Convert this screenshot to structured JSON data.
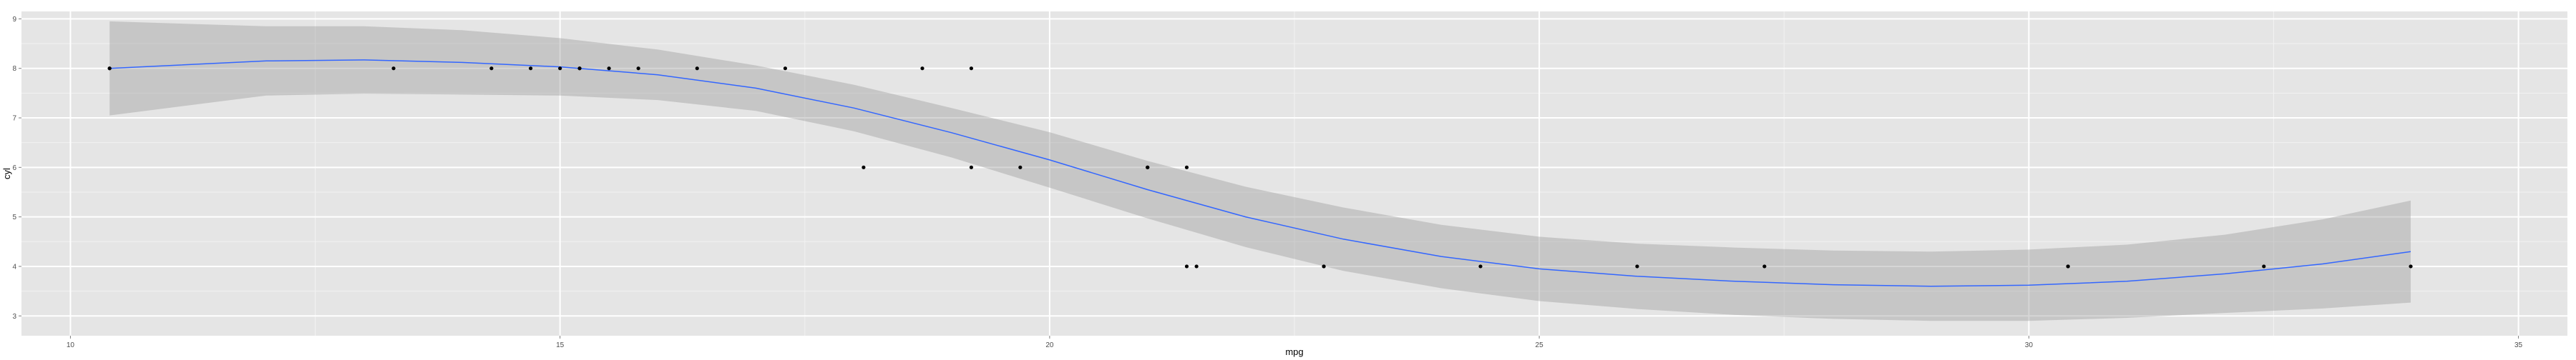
{
  "chart_data": {
    "type": "scatter",
    "title": "",
    "xlabel": "mpg",
    "ylabel": "cyl",
    "xlim": [
      9.5,
      35.5
    ],
    "ylim": [
      2.6,
      9.15
    ],
    "xticks": [
      10,
      15,
      20,
      25,
      30,
      35
    ],
    "yticks": [
      3,
      4,
      5,
      6,
      7,
      8,
      9
    ],
    "grid": true,
    "legend": "none",
    "points": [
      {
        "x": 10.4,
        "y": 8
      },
      {
        "x": 10.4,
        "y": 8
      },
      {
        "x": 13.3,
        "y": 8
      },
      {
        "x": 14.3,
        "y": 8
      },
      {
        "x": 14.7,
        "y": 8
      },
      {
        "x": 15.0,
        "y": 8
      },
      {
        "x": 15.2,
        "y": 8
      },
      {
        "x": 15.2,
        "y": 8
      },
      {
        "x": 15.5,
        "y": 8
      },
      {
        "x": 15.8,
        "y": 8
      },
      {
        "x": 16.4,
        "y": 8
      },
      {
        "x": 17.3,
        "y": 8
      },
      {
        "x": 18.1,
        "y": 6
      },
      {
        "x": 18.7,
        "y": 8
      },
      {
        "x": 19.2,
        "y": 6
      },
      {
        "x": 19.2,
        "y": 8
      },
      {
        "x": 19.7,
        "y": 6
      },
      {
        "x": 21.0,
        "y": 6
      },
      {
        "x": 21.0,
        "y": 6
      },
      {
        "x": 21.4,
        "y": 4
      },
      {
        "x": 21.4,
        "y": 6
      },
      {
        "x": 21.5,
        "y": 4
      },
      {
        "x": 22.8,
        "y": 4
      },
      {
        "x": 22.8,
        "y": 4
      },
      {
        "x": 24.4,
        "y": 4
      },
      {
        "x": 26.0,
        "y": 4
      },
      {
        "x": 27.3,
        "y": 4
      },
      {
        "x": 30.4,
        "y": 4
      },
      {
        "x": 30.4,
        "y": 4
      },
      {
        "x": 32.4,
        "y": 4
      },
      {
        "x": 33.9,
        "y": 4
      }
    ],
    "smooth": {
      "method": "loess",
      "color": "#3366ff",
      "band_color": "#999999",
      "x": [
        10.4,
        12.0,
        13.0,
        14.0,
        15.0,
        16.0,
        17.0,
        18.0,
        19.0,
        20.0,
        21.0,
        22.0,
        23.0,
        24.0,
        25.0,
        26.0,
        27.0,
        28.0,
        29.0,
        30.0,
        31.0,
        32.0,
        33.0,
        33.9
      ],
      "y": [
        8.0,
        8.15,
        8.17,
        8.12,
        8.03,
        7.87,
        7.6,
        7.2,
        6.7,
        6.15,
        5.55,
        5.0,
        4.55,
        4.2,
        3.95,
        3.8,
        3.7,
        3.63,
        3.6,
        3.62,
        3.7,
        3.85,
        4.05,
        4.3
      ],
      "upper": [
        8.95,
        8.85,
        8.85,
        8.77,
        8.61,
        8.38,
        8.06,
        7.67,
        7.2,
        6.71,
        6.13,
        5.61,
        5.19,
        4.84,
        4.6,
        4.46,
        4.38,
        4.32,
        4.3,
        4.34,
        4.44,
        4.64,
        4.95,
        5.33
      ],
      "lower": [
        7.05,
        7.45,
        7.49,
        7.47,
        7.45,
        7.36,
        7.14,
        6.73,
        6.2,
        5.59,
        4.97,
        4.39,
        3.91,
        3.56,
        3.3,
        3.14,
        3.02,
        2.94,
        2.9,
        2.9,
        2.96,
        3.06,
        3.15,
        3.27
      ]
    }
  }
}
